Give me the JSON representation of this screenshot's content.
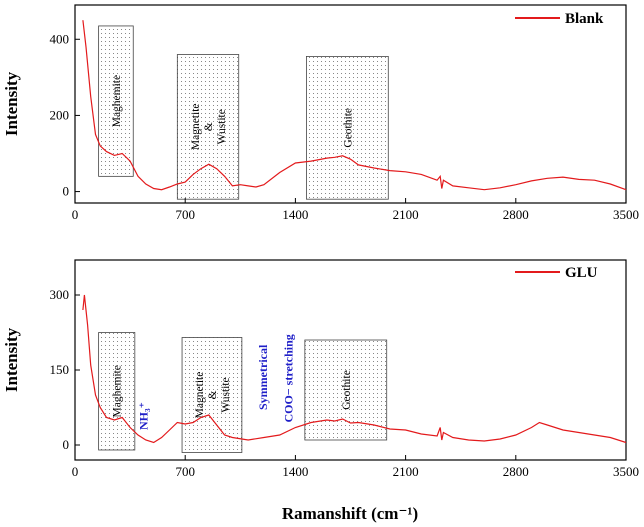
{
  "chart_data": [
    {
      "type": "line",
      "series_name": "Blank",
      "ylabel": "Intensity",
      "xlim": [
        0,
        3500
      ],
      "ylim": [
        -30,
        490
      ],
      "xticks": [
        "0",
        "700",
        "1400",
        "2100",
        "2800",
        "3500"
      ],
      "yticks": [
        0,
        200,
        400
      ],
      "color": "#e31a1c",
      "x": [
        50,
        70,
        100,
        130,
        160,
        200,
        250,
        300,
        350,
        400,
        450,
        500,
        550,
        600,
        650,
        700,
        750,
        800,
        850,
        900,
        950,
        1000,
        1050,
        1100,
        1150,
        1200,
        1300,
        1400,
        1500,
        1600,
        1650,
        1700,
        1750,
        1800,
        1900,
        2000,
        2100,
        2200,
        2300,
        2320,
        2330,
        2340,
        2400,
        2500,
        2600,
        2700,
        2800,
        2900,
        3000,
        3100,
        3200,
        3300,
        3400,
        3500
      ],
      "y": [
        450,
        380,
        250,
        150,
        120,
        105,
        95,
        100,
        80,
        40,
        20,
        8,
        5,
        12,
        20,
        25,
        45,
        60,
        72,
        60,
        40,
        15,
        18,
        15,
        12,
        18,
        50,
        75,
        80,
        88,
        90,
        94,
        85,
        70,
        62,
        55,
        52,
        45,
        30,
        40,
        8,
        30,
        15,
        10,
        5,
        10,
        18,
        28,
        35,
        38,
        32,
        30,
        20,
        5
      ],
      "annotations": [
        {
          "type": "box",
          "x": [
            150,
            370
          ],
          "y": [
            40,
            435
          ],
          "labels": [
            "Maghemite"
          ]
        },
        {
          "type": "box",
          "x": [
            650,
            1040
          ],
          "y": [
            -20,
            360
          ],
          "labels": [
            "Magnetite",
            "&",
            "Wustite"
          ]
        },
        {
          "type": "box",
          "x": [
            1470,
            1990
          ],
          "y": [
            -20,
            355
          ],
          "labels": [
            "Geothite"
          ]
        }
      ]
    },
    {
      "type": "line",
      "series_name": "GLU",
      "ylabel": "Intensity",
      "xlabel": "Ramanshift (cm⁻¹)",
      "xlim": [
        0,
        3500
      ],
      "ylim": [
        -30,
        370
      ],
      "xticks": [
        "0",
        "700",
        "1400",
        "2100",
        "2800",
        "3500"
      ],
      "yticks": [
        0,
        150,
        300
      ],
      "color": "#e31a1c",
      "x": [
        50,
        60,
        80,
        100,
        130,
        160,
        200,
        250,
        300,
        350,
        400,
        450,
        500,
        550,
        600,
        650,
        700,
        750,
        800,
        850,
        900,
        950,
        1000,
        1100,
        1200,
        1300,
        1400,
        1500,
        1600,
        1650,
        1700,
        1750,
        1800,
        1900,
        2000,
        2100,
        2200,
        2300,
        2320,
        2330,
        2340,
        2400,
        2500,
        2600,
        2700,
        2800,
        2900,
        2950,
        3000,
        3100,
        3200,
        3300,
        3400,
        3500
      ],
      "y": [
        270,
        300,
        240,
        160,
        100,
        75,
        55,
        50,
        55,
        35,
        20,
        10,
        5,
        15,
        30,
        45,
        42,
        45,
        55,
        60,
        40,
        20,
        15,
        10,
        15,
        20,
        35,
        45,
        50,
        48,
        52,
        44,
        45,
        40,
        32,
        30,
        22,
        18,
        35,
        10,
        25,
        15,
        10,
        8,
        12,
        20,
        35,
        45,
        40,
        30,
        25,
        20,
        15,
        5
      ],
      "annotations": [
        {
          "type": "box",
          "x": [
            150,
            380
          ],
          "y": [
            -10,
            225
          ],
          "labels": [
            "Maghemite"
          ]
        },
        {
          "type": "box",
          "x": [
            680,
            1060
          ],
          "y": [
            -15,
            215
          ],
          "labels": [
            "Magnetite",
            "&",
            "Wustite"
          ]
        },
        {
          "type": "box",
          "x": [
            1460,
            1980
          ],
          "y": [
            10,
            210
          ],
          "labels": [
            "Geothite"
          ]
        },
        {
          "type": "text",
          "text": "NH₃⁺",
          "x": 460,
          "y": 30,
          "color": "blue"
        },
        {
          "type": "text",
          "text": "Symmetrical",
          "x": 1220,
          "y": 70,
          "color": "blue"
        },
        {
          "type": "text",
          "text": "COO− stretching",
          "x": 1380,
          "y": 45,
          "color": "blue"
        }
      ]
    }
  ]
}
